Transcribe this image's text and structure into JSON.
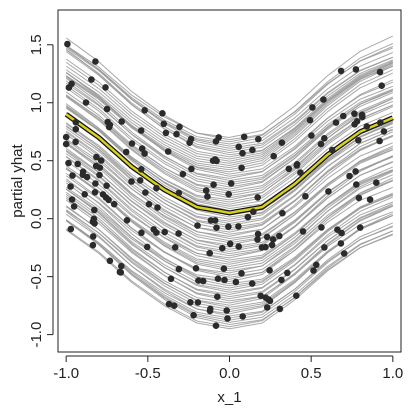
{
  "chart_data": {
    "type": "line",
    "title": "",
    "xlabel": "x_1",
    "ylabel": "partial yhat",
    "xlim": [
      -1.05,
      1.05
    ],
    "ylim": [
      -1.15,
      1.8
    ],
    "xticks": [
      -1.0,
      -0.5,
      0.0,
      0.5,
      1.0
    ],
    "xtick_labels": [
      "-1.0",
      "-0.5",
      "0.0",
      "0.5",
      "1.0"
    ],
    "yticks": [
      -1.0,
      -0.5,
      0.0,
      0.5,
      1.0,
      1.5
    ],
    "ytick_labels": [
      "-1.0",
      "-0.5",
      "0.0",
      "0.5",
      "1.0",
      "1.5"
    ],
    "grid": false,
    "legend": "none",
    "colors": {
      "ice_curves": "#9a9a9a",
      "mean_curve": "#d8d020",
      "mean_outline": "#111111",
      "points": "#2b2b2b"
    },
    "series": [
      {
        "kind": "average",
        "x": [
          -1.0,
          -0.8,
          -0.6,
          -0.4,
          -0.2,
          0.0,
          0.2,
          0.4,
          0.6,
          0.8,
          1.0
        ],
        "values": [
          0.9,
          0.7,
          0.45,
          0.25,
          0.1,
          0.05,
          0.1,
          0.3,
          0.55,
          0.75,
          0.87
        ]
      }
    ],
    "ice_offsets": {
      "count": 90,
      "min": -1.0,
      "max": 0.65
    },
    "observations_count": 200
  }
}
